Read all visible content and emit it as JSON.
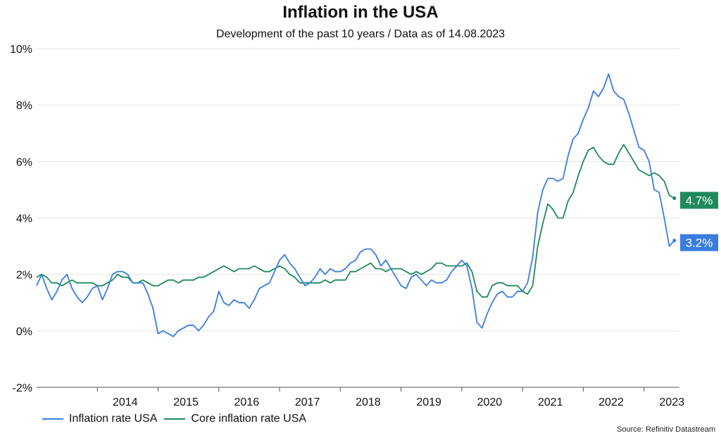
{
  "chart_data": {
    "type": "line",
    "title": "Inflation in the USA",
    "subtitle": "Development of the past 10 years / Data as of 14.08.2023",
    "source": "Source: Refinitiv Datastream",
    "ylim": [
      -2,
      10
    ],
    "yticks": [
      -2,
      0,
      2,
      4,
      6,
      8,
      10
    ],
    "ytick_labels": [
      "-2%",
      "0%",
      "2%",
      "4%",
      "6%",
      "8%",
      "10%"
    ],
    "xlim": [
      "2013-01",
      "2023-08"
    ],
    "xtick_labels": [
      "2014",
      "2015",
      "2016",
      "2017",
      "2018",
      "2019",
      "2020",
      "2021",
      "2022",
      "2023"
    ],
    "legend_position": "bottom-left",
    "grid": "horizontal",
    "series": [
      {
        "name": "Inflation rate USA",
        "color": "#3a7de0",
        "end_label": "3.2%",
        "points": [
          [
            "2013-01",
            1.6
          ],
          [
            "2013-02",
            2.0
          ],
          [
            "2013-03",
            1.5
          ],
          [
            "2013-04",
            1.1
          ],
          [
            "2013-05",
            1.4
          ],
          [
            "2013-06",
            1.8
          ],
          [
            "2013-07",
            2.0
          ],
          [
            "2013-08",
            1.5
          ],
          [
            "2013-09",
            1.2
          ],
          [
            "2013-10",
            1.0
          ],
          [
            "2013-11",
            1.2
          ],
          [
            "2013-12",
            1.5
          ],
          [
            "2014-01",
            1.6
          ],
          [
            "2014-02",
            1.1
          ],
          [
            "2014-03",
            1.5
          ],
          [
            "2014-04",
            2.0
          ],
          [
            "2014-05",
            2.1
          ],
          [
            "2014-06",
            2.1
          ],
          [
            "2014-07",
            2.0
          ],
          [
            "2014-08",
            1.7
          ],
          [
            "2014-09",
            1.7
          ],
          [
            "2014-10",
            1.7
          ],
          [
            "2014-11",
            1.3
          ],
          [
            "2014-12",
            0.8
          ],
          [
            "2015-01",
            -0.1
          ],
          [
            "2015-02",
            0.0
          ],
          [
            "2015-03",
            -0.1
          ],
          [
            "2015-04",
            -0.2
          ],
          [
            "2015-05",
            0.0
          ],
          [
            "2015-06",
            0.1
          ],
          [
            "2015-07",
            0.2
          ],
          [
            "2015-08",
            0.2
          ],
          [
            "2015-09",
            0.0
          ],
          [
            "2015-10",
            0.2
          ],
          [
            "2015-11",
            0.5
          ],
          [
            "2015-12",
            0.7
          ],
          [
            "2016-01",
            1.4
          ],
          [
            "2016-02",
            1.0
          ],
          [
            "2016-03",
            0.9
          ],
          [
            "2016-04",
            1.1
          ],
          [
            "2016-05",
            1.0
          ],
          [
            "2016-06",
            1.0
          ],
          [
            "2016-07",
            0.8
          ],
          [
            "2016-08",
            1.1
          ],
          [
            "2016-09",
            1.5
          ],
          [
            "2016-10",
            1.6
          ],
          [
            "2016-11",
            1.7
          ],
          [
            "2016-12",
            2.1
          ],
          [
            "2017-01",
            2.5
          ],
          [
            "2017-02",
            2.7
          ],
          [
            "2017-03",
            2.4
          ],
          [
            "2017-04",
            2.2
          ],
          [
            "2017-05",
            1.9
          ],
          [
            "2017-06",
            1.6
          ],
          [
            "2017-07",
            1.7
          ],
          [
            "2017-08",
            1.9
          ],
          [
            "2017-09",
            2.2
          ],
          [
            "2017-10",
            2.0
          ],
          [
            "2017-11",
            2.2
          ],
          [
            "2017-12",
            2.1
          ],
          [
            "2018-01",
            2.1
          ],
          [
            "2018-02",
            2.2
          ],
          [
            "2018-03",
            2.4
          ],
          [
            "2018-04",
            2.5
          ],
          [
            "2018-05",
            2.8
          ],
          [
            "2018-06",
            2.9
          ],
          [
            "2018-07",
            2.9
          ],
          [
            "2018-08",
            2.7
          ],
          [
            "2018-09",
            2.3
          ],
          [
            "2018-10",
            2.5
          ],
          [
            "2018-11",
            2.2
          ],
          [
            "2018-12",
            1.9
          ],
          [
            "2019-01",
            1.6
          ],
          [
            "2019-02",
            1.5
          ],
          [
            "2019-03",
            1.9
          ],
          [
            "2019-04",
            2.0
          ],
          [
            "2019-05",
            1.8
          ],
          [
            "2019-06",
            1.6
          ],
          [
            "2019-07",
            1.8
          ],
          [
            "2019-08",
            1.7
          ],
          [
            "2019-09",
            1.7
          ],
          [
            "2019-10",
            1.8
          ],
          [
            "2019-11",
            2.1
          ],
          [
            "2019-12",
            2.3
          ],
          [
            "2020-01",
            2.5
          ],
          [
            "2020-02",
            2.3
          ],
          [
            "2020-03",
            1.5
          ],
          [
            "2020-04",
            0.3
          ],
          [
            "2020-05",
            0.1
          ],
          [
            "2020-06",
            0.6
          ],
          [
            "2020-07",
            1.0
          ],
          [
            "2020-08",
            1.3
          ],
          [
            "2020-09",
            1.4
          ],
          [
            "2020-10",
            1.2
          ],
          [
            "2020-11",
            1.2
          ],
          [
            "2020-12",
            1.4
          ],
          [
            "2021-01",
            1.4
          ],
          [
            "2021-02",
            1.7
          ],
          [
            "2021-03",
            2.6
          ],
          [
            "2021-04",
            4.2
          ],
          [
            "2021-05",
            5.0
          ],
          [
            "2021-06",
            5.4
          ],
          [
            "2021-07",
            5.4
          ],
          [
            "2021-08",
            5.3
          ],
          [
            "2021-09",
            5.4
          ],
          [
            "2021-10",
            6.2
          ],
          [
            "2021-11",
            6.8
          ],
          [
            "2021-12",
            7.0
          ],
          [
            "2022-01",
            7.5
          ],
          [
            "2022-02",
            7.9
          ],
          [
            "2022-03",
            8.5
          ],
          [
            "2022-04",
            8.3
          ],
          [
            "2022-05",
            8.6
          ],
          [
            "2022-06",
            9.1
          ],
          [
            "2022-07",
            8.5
          ],
          [
            "2022-08",
            8.3
          ],
          [
            "2022-09",
            8.2
          ],
          [
            "2022-10",
            7.7
          ],
          [
            "2022-11",
            7.1
          ],
          [
            "2022-12",
            6.5
          ],
          [
            "2023-01",
            6.4
          ],
          [
            "2023-02",
            6.0
          ],
          [
            "2023-03",
            5.0
          ],
          [
            "2023-04",
            4.9
          ],
          [
            "2023-05",
            4.0
          ],
          [
            "2023-06",
            3.0
          ],
          [
            "2023-07",
            3.2
          ]
        ]
      },
      {
        "name": "Core inflation rate USA",
        "color": "#1e8a5a",
        "end_label": "4.7%",
        "points": [
          [
            "2013-01",
            1.9
          ],
          [
            "2013-02",
            2.0
          ],
          [
            "2013-03",
            1.9
          ],
          [
            "2013-04",
            1.7
          ],
          [
            "2013-05",
            1.7
          ],
          [
            "2013-06",
            1.6
          ],
          [
            "2013-07",
            1.7
          ],
          [
            "2013-08",
            1.8
          ],
          [
            "2013-09",
            1.7
          ],
          [
            "2013-10",
            1.7
          ],
          [
            "2013-11",
            1.7
          ],
          [
            "2013-12",
            1.7
          ],
          [
            "2014-01",
            1.6
          ],
          [
            "2014-02",
            1.6
          ],
          [
            "2014-03",
            1.7
          ],
          [
            "2014-04",
            1.8
          ],
          [
            "2014-05",
            2.0
          ],
          [
            "2014-06",
            1.9
          ],
          [
            "2014-07",
            1.9
          ],
          [
            "2014-08",
            1.7
          ],
          [
            "2014-09",
            1.7
          ],
          [
            "2014-10",
            1.8
          ],
          [
            "2014-11",
            1.7
          ],
          [
            "2014-12",
            1.6
          ],
          [
            "2015-01",
            1.6
          ],
          [
            "2015-02",
            1.7
          ],
          [
            "2015-03",
            1.8
          ],
          [
            "2015-04",
            1.8
          ],
          [
            "2015-05",
            1.7
          ],
          [
            "2015-06",
            1.8
          ],
          [
            "2015-07",
            1.8
          ],
          [
            "2015-08",
            1.8
          ],
          [
            "2015-09",
            1.9
          ],
          [
            "2015-10",
            1.9
          ],
          [
            "2015-11",
            2.0
          ],
          [
            "2015-12",
            2.1
          ],
          [
            "2016-01",
            2.2
          ],
          [
            "2016-02",
            2.3
          ],
          [
            "2016-03",
            2.2
          ],
          [
            "2016-04",
            2.1
          ],
          [
            "2016-05",
            2.2
          ],
          [
            "2016-06",
            2.2
          ],
          [
            "2016-07",
            2.2
          ],
          [
            "2016-08",
            2.3
          ],
          [
            "2016-09",
            2.2
          ],
          [
            "2016-10",
            2.1
          ],
          [
            "2016-11",
            2.1
          ],
          [
            "2016-12",
            2.2
          ],
          [
            "2017-01",
            2.3
          ],
          [
            "2017-02",
            2.2
          ],
          [
            "2017-03",
            2.0
          ],
          [
            "2017-04",
            1.9
          ],
          [
            "2017-05",
            1.7
          ],
          [
            "2017-06",
            1.7
          ],
          [
            "2017-07",
            1.7
          ],
          [
            "2017-08",
            1.7
          ],
          [
            "2017-09",
            1.7
          ],
          [
            "2017-10",
            1.8
          ],
          [
            "2017-11",
            1.7
          ],
          [
            "2017-12",
            1.8
          ],
          [
            "2018-01",
            1.8
          ],
          [
            "2018-02",
            1.8
          ],
          [
            "2018-03",
            2.1
          ],
          [
            "2018-04",
            2.1
          ],
          [
            "2018-05",
            2.2
          ],
          [
            "2018-06",
            2.3
          ],
          [
            "2018-07",
            2.4
          ],
          [
            "2018-08",
            2.2
          ],
          [
            "2018-09",
            2.2
          ],
          [
            "2018-10",
            2.1
          ],
          [
            "2018-11",
            2.2
          ],
          [
            "2018-12",
            2.2
          ],
          [
            "2019-01",
            2.2
          ],
          [
            "2019-02",
            2.1
          ],
          [
            "2019-03",
            2.0
          ],
          [
            "2019-04",
            2.1
          ],
          [
            "2019-05",
            2.0
          ],
          [
            "2019-06",
            2.1
          ],
          [
            "2019-07",
            2.2
          ],
          [
            "2019-08",
            2.4
          ],
          [
            "2019-09",
            2.4
          ],
          [
            "2019-10",
            2.3
          ],
          [
            "2019-11",
            2.3
          ],
          [
            "2019-12",
            2.3
          ],
          [
            "2020-01",
            2.3
          ],
          [
            "2020-02",
            2.4
          ],
          [
            "2020-03",
            2.1
          ],
          [
            "2020-04",
            1.4
          ],
          [
            "2020-05",
            1.2
          ],
          [
            "2020-06",
            1.2
          ],
          [
            "2020-07",
            1.6
          ],
          [
            "2020-08",
            1.7
          ],
          [
            "2020-09",
            1.7
          ],
          [
            "2020-10",
            1.6
          ],
          [
            "2020-11",
            1.6
          ],
          [
            "2020-12",
            1.6
          ],
          [
            "2021-01",
            1.4
          ],
          [
            "2021-02",
            1.3
          ],
          [
            "2021-03",
            1.6
          ],
          [
            "2021-04",
            3.0
          ],
          [
            "2021-05",
            3.8
          ],
          [
            "2021-06",
            4.5
          ],
          [
            "2021-07",
            4.3
          ],
          [
            "2021-08",
            4.0
          ],
          [
            "2021-09",
            4.0
          ],
          [
            "2021-10",
            4.6
          ],
          [
            "2021-11",
            4.9
          ],
          [
            "2021-12",
            5.5
          ],
          [
            "2022-01",
            6.0
          ],
          [
            "2022-02",
            6.4
          ],
          [
            "2022-03",
            6.5
          ],
          [
            "2022-04",
            6.2
          ],
          [
            "2022-05",
            6.0
          ],
          [
            "2022-06",
            5.9
          ],
          [
            "2022-07",
            5.9
          ],
          [
            "2022-08",
            6.3
          ],
          [
            "2022-09",
            6.6
          ],
          [
            "2022-10",
            6.3
          ],
          [
            "2022-11",
            6.0
          ],
          [
            "2022-12",
            5.7
          ],
          [
            "2023-01",
            5.6
          ],
          [
            "2023-02",
            5.5
          ],
          [
            "2023-03",
            5.6
          ],
          [
            "2023-04",
            5.5
          ],
          [
            "2023-05",
            5.3
          ],
          [
            "2023-06",
            4.8
          ],
          [
            "2023-07",
            4.7
          ]
        ]
      }
    ]
  }
}
